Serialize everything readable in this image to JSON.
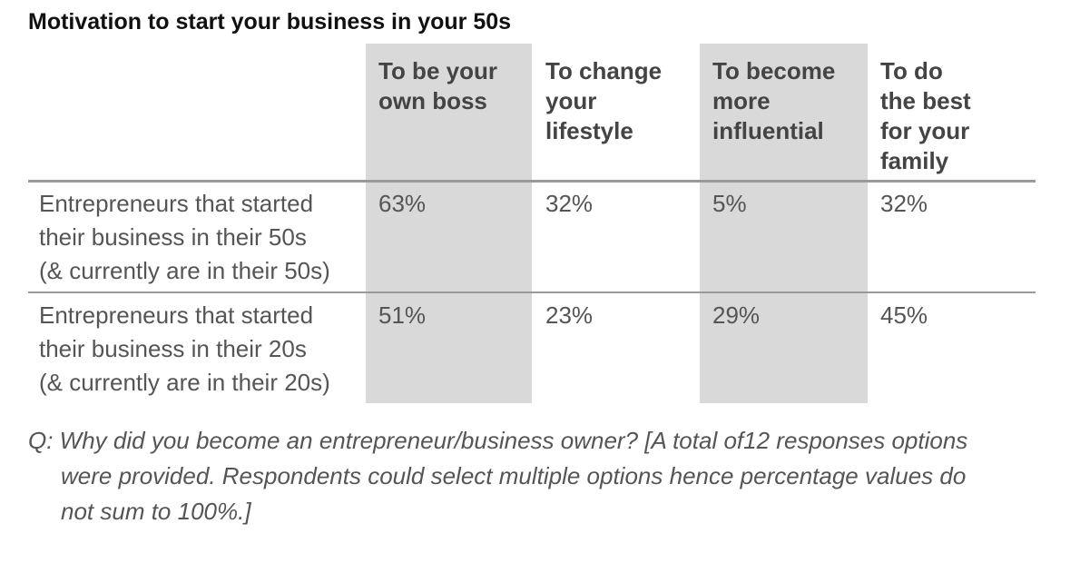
{
  "title": "Motivation to start your business in your 50s",
  "chart_data": {
    "type": "table",
    "columns": [
      {
        "label_lines": [
          "To be your",
          "own boss"
        ]
      },
      {
        "label_lines": [
          "To change",
          "your",
          "lifestyle"
        ]
      },
      {
        "label_lines": [
          "To become",
          "more",
          "influential"
        ]
      },
      {
        "label_lines": [
          "To do",
          "the best",
          "for your",
          "family"
        ]
      }
    ],
    "rows": [
      {
        "label_lines": [
          "Entrepreneurs that started",
          "their business in their 50s",
          "(& currently are in their 50s)"
        ],
        "cells": [
          "63%",
          "32%",
          "5%",
          "32%"
        ],
        "values": [
          63,
          32,
          5,
          32
        ]
      },
      {
        "label_lines": [
          "Entrepreneurs that started",
          "their business in their 20s",
          "(& currently are in their 20s)"
        ],
        "cells": [
          "51%",
          "23%",
          "29%",
          "45%"
        ],
        "values": [
          51,
          23,
          29,
          45
        ]
      }
    ],
    "shaded_columns": [
      0,
      2
    ],
    "shade_color": "#d9d9d9",
    "rule_color": "#9a9a9a"
  },
  "footnote": {
    "line1": "Q: Why did you become an entrepreneur/business owner? [A total of12 responses options",
    "line2": "were provided. Respondents could select multiple options hence percentage values do",
    "line3": "not sum to 100%.]"
  }
}
